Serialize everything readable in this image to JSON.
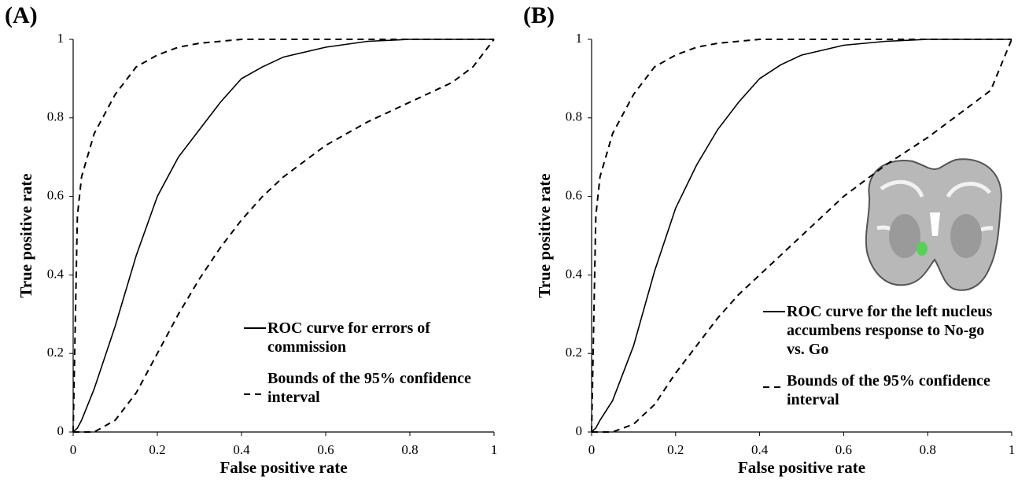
{
  "chart_data": [
    {
      "type": "line",
      "label": "(A)",
      "xlabel": "False positive rate",
      "ylabel": "True positive rate",
      "xlim": [
        0,
        1
      ],
      "ylim": [
        0,
        1
      ],
      "xticks": [
        0,
        0.2,
        0.4,
        0.6,
        0.8,
        1
      ],
      "yticks": [
        0,
        0.2,
        0.4,
        0.6,
        0.8,
        1
      ],
      "x": [
        0,
        0.01,
        0.02,
        0.05,
        0.1,
        0.15,
        0.2,
        0.25,
        0.3,
        0.35,
        0.4,
        0.45,
        0.5,
        0.6,
        0.7,
        0.8,
        0.9,
        0.95,
        1
      ],
      "series": [
        {
          "name": "ROC curve for errors of commission",
          "color": "#000000",
          "dash": false,
          "values": [
            0,
            0.01,
            0.03,
            0.11,
            0.27,
            0.45,
            0.6,
            0.7,
            0.77,
            0.84,
            0.9,
            0.93,
            0.955,
            0.98,
            0.995,
            1,
            1,
            1,
            1
          ]
        },
        {
          "name": "Bounds of the 95% confidence interval",
          "color": "#000000",
          "dash": true,
          "upper": [
            0,
            0.55,
            0.65,
            0.76,
            0.86,
            0.93,
            0.96,
            0.98,
            0.99,
            0.995,
            1,
            1,
            1,
            1,
            1,
            1,
            1,
            1,
            1
          ],
          "lower": [
            0,
            0,
            0,
            0,
            0.03,
            0.1,
            0.2,
            0.3,
            0.39,
            0.47,
            0.54,
            0.6,
            0.65,
            0.73,
            0.79,
            0.84,
            0.89,
            0.93,
            1
          ]
        }
      ]
    },
    {
      "type": "line",
      "label": "(B)",
      "xlabel": "False positive rate",
      "ylabel": "True positive rate",
      "xlim": [
        0,
        1
      ],
      "ylim": [
        0,
        1
      ],
      "xticks": [
        0,
        0.2,
        0.4,
        0.6,
        0.8,
        1
      ],
      "yticks": [
        0,
        0.2,
        0.4,
        0.6,
        0.8,
        1
      ],
      "x": [
        0,
        0.01,
        0.02,
        0.05,
        0.1,
        0.15,
        0.2,
        0.25,
        0.3,
        0.35,
        0.4,
        0.45,
        0.5,
        0.6,
        0.7,
        0.8,
        0.9,
        0.95,
        1
      ],
      "series": [
        {
          "name": "ROC curve for the left nucleus accumbens response to No-go vs. Go",
          "color": "#000000",
          "dash": false,
          "values": [
            0,
            0.01,
            0.03,
            0.08,
            0.22,
            0.41,
            0.57,
            0.68,
            0.77,
            0.84,
            0.9,
            0.935,
            0.96,
            0.985,
            0.995,
            1,
            1,
            1,
            1
          ]
        },
        {
          "name": "Bounds of the 95% confidence interval",
          "color": "#000000",
          "dash": true,
          "upper": [
            0,
            0.55,
            0.65,
            0.76,
            0.86,
            0.93,
            0.96,
            0.98,
            0.99,
            0.995,
            1,
            1,
            1,
            1,
            1,
            1,
            1,
            1,
            1
          ],
          "lower": [
            0,
            0,
            0,
            0,
            0.02,
            0.07,
            0.15,
            0.22,
            0.29,
            0.35,
            0.4,
            0.45,
            0.5,
            0.6,
            0.68,
            0.75,
            0.83,
            0.87,
            1
          ]
        }
      ]
    }
  ]
}
